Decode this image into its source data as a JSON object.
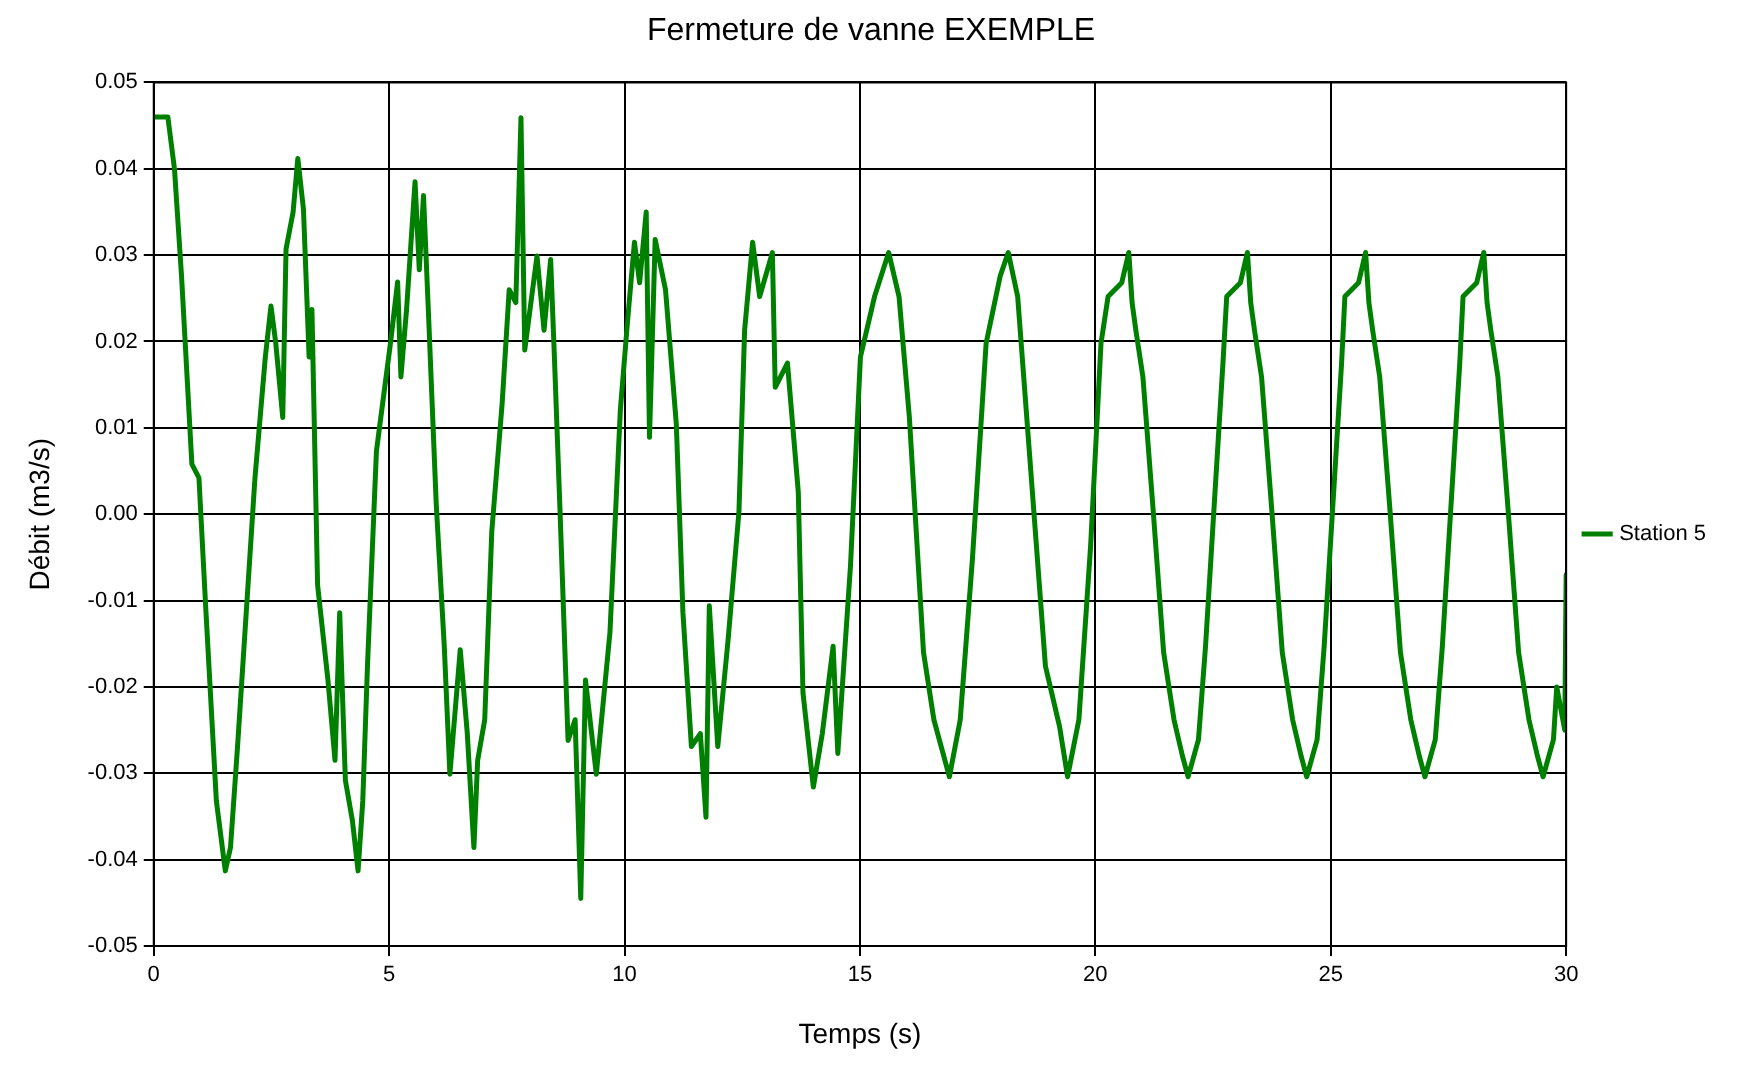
{
  "chart_data": {
    "type": "line",
    "title": "Fermeture de vanne EXEMPLE",
    "xlabel": "Temps (s)",
    "ylabel": "Débit (m3/s)",
    "xlim": [
      0,
      30
    ],
    "xticks": [
      0,
      5,
      10,
      15,
      20,
      25,
      30
    ],
    "ylim": [
      -0.05,
      0.05
    ],
    "yticks": [
      -0.05,
      -0.04,
      -0.03,
      -0.02,
      -0.01,
      {
        "value": 0,
        "label": "0.00"
      },
      0.01,
      0.02,
      0.03,
      0.04,
      0.05
    ],
    "grid": true,
    "legend": "right",
    "marker": "none",
    "line_style": "solid",
    "series": [
      {
        "name": "Station 5",
        "color": "#008000",
        "x": [
          0,
          0.3,
          0.44,
          0.59,
          0.81,
          0.96,
          1.11,
          1.33,
          1.52,
          1.63,
          1.78,
          2.15,
          2.37,
          2.49,
          2.59,
          2.74,
          2.81,
          2.96,
          3.06,
          3.18,
          3.3,
          3.36,
          3.48,
          3.7,
          3.85,
          3.95,
          4.07,
          4.22,
          4.34,
          4.44,
          4.54,
          4.73,
          5.03,
          5.18,
          5.25,
          5.37,
          5.55,
          5.64,
          5.73,
          5.85,
          6,
          6.17,
          6.29,
          6.51,
          6.66,
          6.8,
          6.88,
          7.03,
          7.18,
          7.4,
          7.55,
          7.69,
          7.8,
          7.88,
          8.14,
          8.29,
          8.43,
          8.51,
          8.63,
          8.8,
          8.95,
          9.07,
          9.17,
          9.4,
          9.69,
          9.91,
          10.06,
          10.21,
          10.32,
          10.46,
          10.53,
          10.65,
          10.87,
          11.1,
          11.24,
          11.42,
          11.61,
          11.73,
          11.8,
          11.98,
          12.2,
          12.43,
          12.55,
          12.72,
          12.87,
          13.14,
          13.2,
          13.46,
          13.69,
          13.79,
          14.01,
          14.2,
          14.43,
          14.53,
          14.8,
          15.01,
          15.31,
          15.61,
          15.83,
          16.05,
          16.35,
          16.57,
          16.9,
          17.13,
          17.39,
          17.68,
          17.98,
          18.15,
          18.35,
          18.64,
          18.94,
          19.24,
          19.41,
          19.65,
          19.9,
          20.12,
          20.27,
          20.56,
          20.71,
          20.78,
          20.86,
          21.01,
          21.23,
          21.45,
          21.67,
          21.85,
          21.97,
          22.19,
          22.34,
          22.56,
          22.71,
          22.79,
          23.08,
          23.23,
          23.3,
          23.38,
          23.53,
          23.75,
          23.97,
          24.19,
          24.37,
          24.49,
          24.71,
          24.86,
          25.08,
          25.23,
          25.3,
          25.59,
          25.74,
          25.81,
          25.89,
          26.04,
          26.26,
          26.48,
          26.7,
          26.88,
          27,
          27.22,
          27.37,
          27.59,
          27.74,
          27.81,
          28.1,
          28.25,
          28.32,
          28.4,
          28.55,
          28.77,
          28.99,
          29.21,
          29.39,
          29.51,
          29.73,
          29.8,
          29.97,
          30
        ],
        "values": [
          0.046,
          0.046,
          0.04,
          0.0276,
          0.0058,
          0.0042,
          -0.0114,
          -0.0332,
          -0.0413,
          -0.0386,
          -0.0269,
          0.0042,
          0.0182,
          0.0241,
          0.0199,
          0.0112,
          0.0307,
          0.035,
          0.0412,
          0.0353,
          0.0182,
          0.0237,
          -0.0082,
          -0.0192,
          -0.0285,
          -0.0114,
          -0.0308,
          -0.0355,
          -0.0413,
          -0.0332,
          -0.0175,
          0.0073,
          0.0199,
          0.0269,
          0.0159,
          0.0237,
          0.0385,
          0.0283,
          0.0369,
          0.0213,
          0.0012,
          -0.0152,
          -0.0301,
          -0.0157,
          -0.0254,
          -0.0386,
          -0.0285,
          -0.0238,
          -0.002,
          0.0128,
          0.026,
          0.0245,
          0.0459,
          0.019,
          0.0299,
          0.0213,
          0.0295,
          0.0182,
          0.0003,
          -0.0262,
          -0.0238,
          -0.0445,
          -0.0192,
          -0.0301,
          -0.0137,
          0.012,
          0.0221,
          0.0315,
          0.0268,
          0.035,
          0.0089,
          0.0318,
          0.026,
          0.0104,
          -0.0114,
          -0.0269,
          -0.0254,
          -0.0351,
          -0.0106,
          -0.0269,
          -0.0145,
          0.0003,
          0.0213,
          0.0315,
          0.0252,
          0.0303,
          0.0147,
          0.0175,
          0.0026,
          -0.0207,
          -0.0316,
          -0.0254,
          -0.0153,
          -0.0277,
          -0.0059,
          0.0182,
          0.0252,
          0.0303,
          0.0252,
          0.0112,
          -0.016,
          -0.0238,
          -0.0304,
          -0.0238,
          -0.0051,
          0.0198,
          0.0276,
          0.0303,
          0.0252,
          0.0042,
          -0.0176,
          -0.0246,
          -0.0304,
          -0.0238,
          -0.0036,
          0.0198,
          0.0252,
          0.0268,
          0.0303,
          0.0245,
          0.0213,
          0.0159,
          0.0003,
          -0.016,
          -0.0238,
          -0.028,
          -0.0304,
          -0.0261,
          -0.0153,
          0.0042,
          0.0175,
          0.0252,
          0.0268,
          0.0303,
          0.0245,
          0.0213,
          0.0159,
          0.0003,
          -0.016,
          -0.0238,
          -0.028,
          -0.0304,
          -0.0261,
          -0.0153,
          0.0042,
          0.0175,
          0.0252,
          0.0268,
          0.0303,
          0.0245,
          0.0213,
          0.0159,
          0.0003,
          -0.016,
          -0.0238,
          -0.028,
          -0.0304,
          -0.0261,
          -0.0153,
          0.0042,
          0.0175,
          0.0252,
          0.0268,
          0.0303,
          0.0245,
          0.0213,
          0.0159,
          0.0003,
          -0.016,
          -0.0238,
          -0.028,
          -0.0304,
          -0.0261,
          -0.02,
          -0.025,
          -0.007
        ]
      }
    ]
  }
}
